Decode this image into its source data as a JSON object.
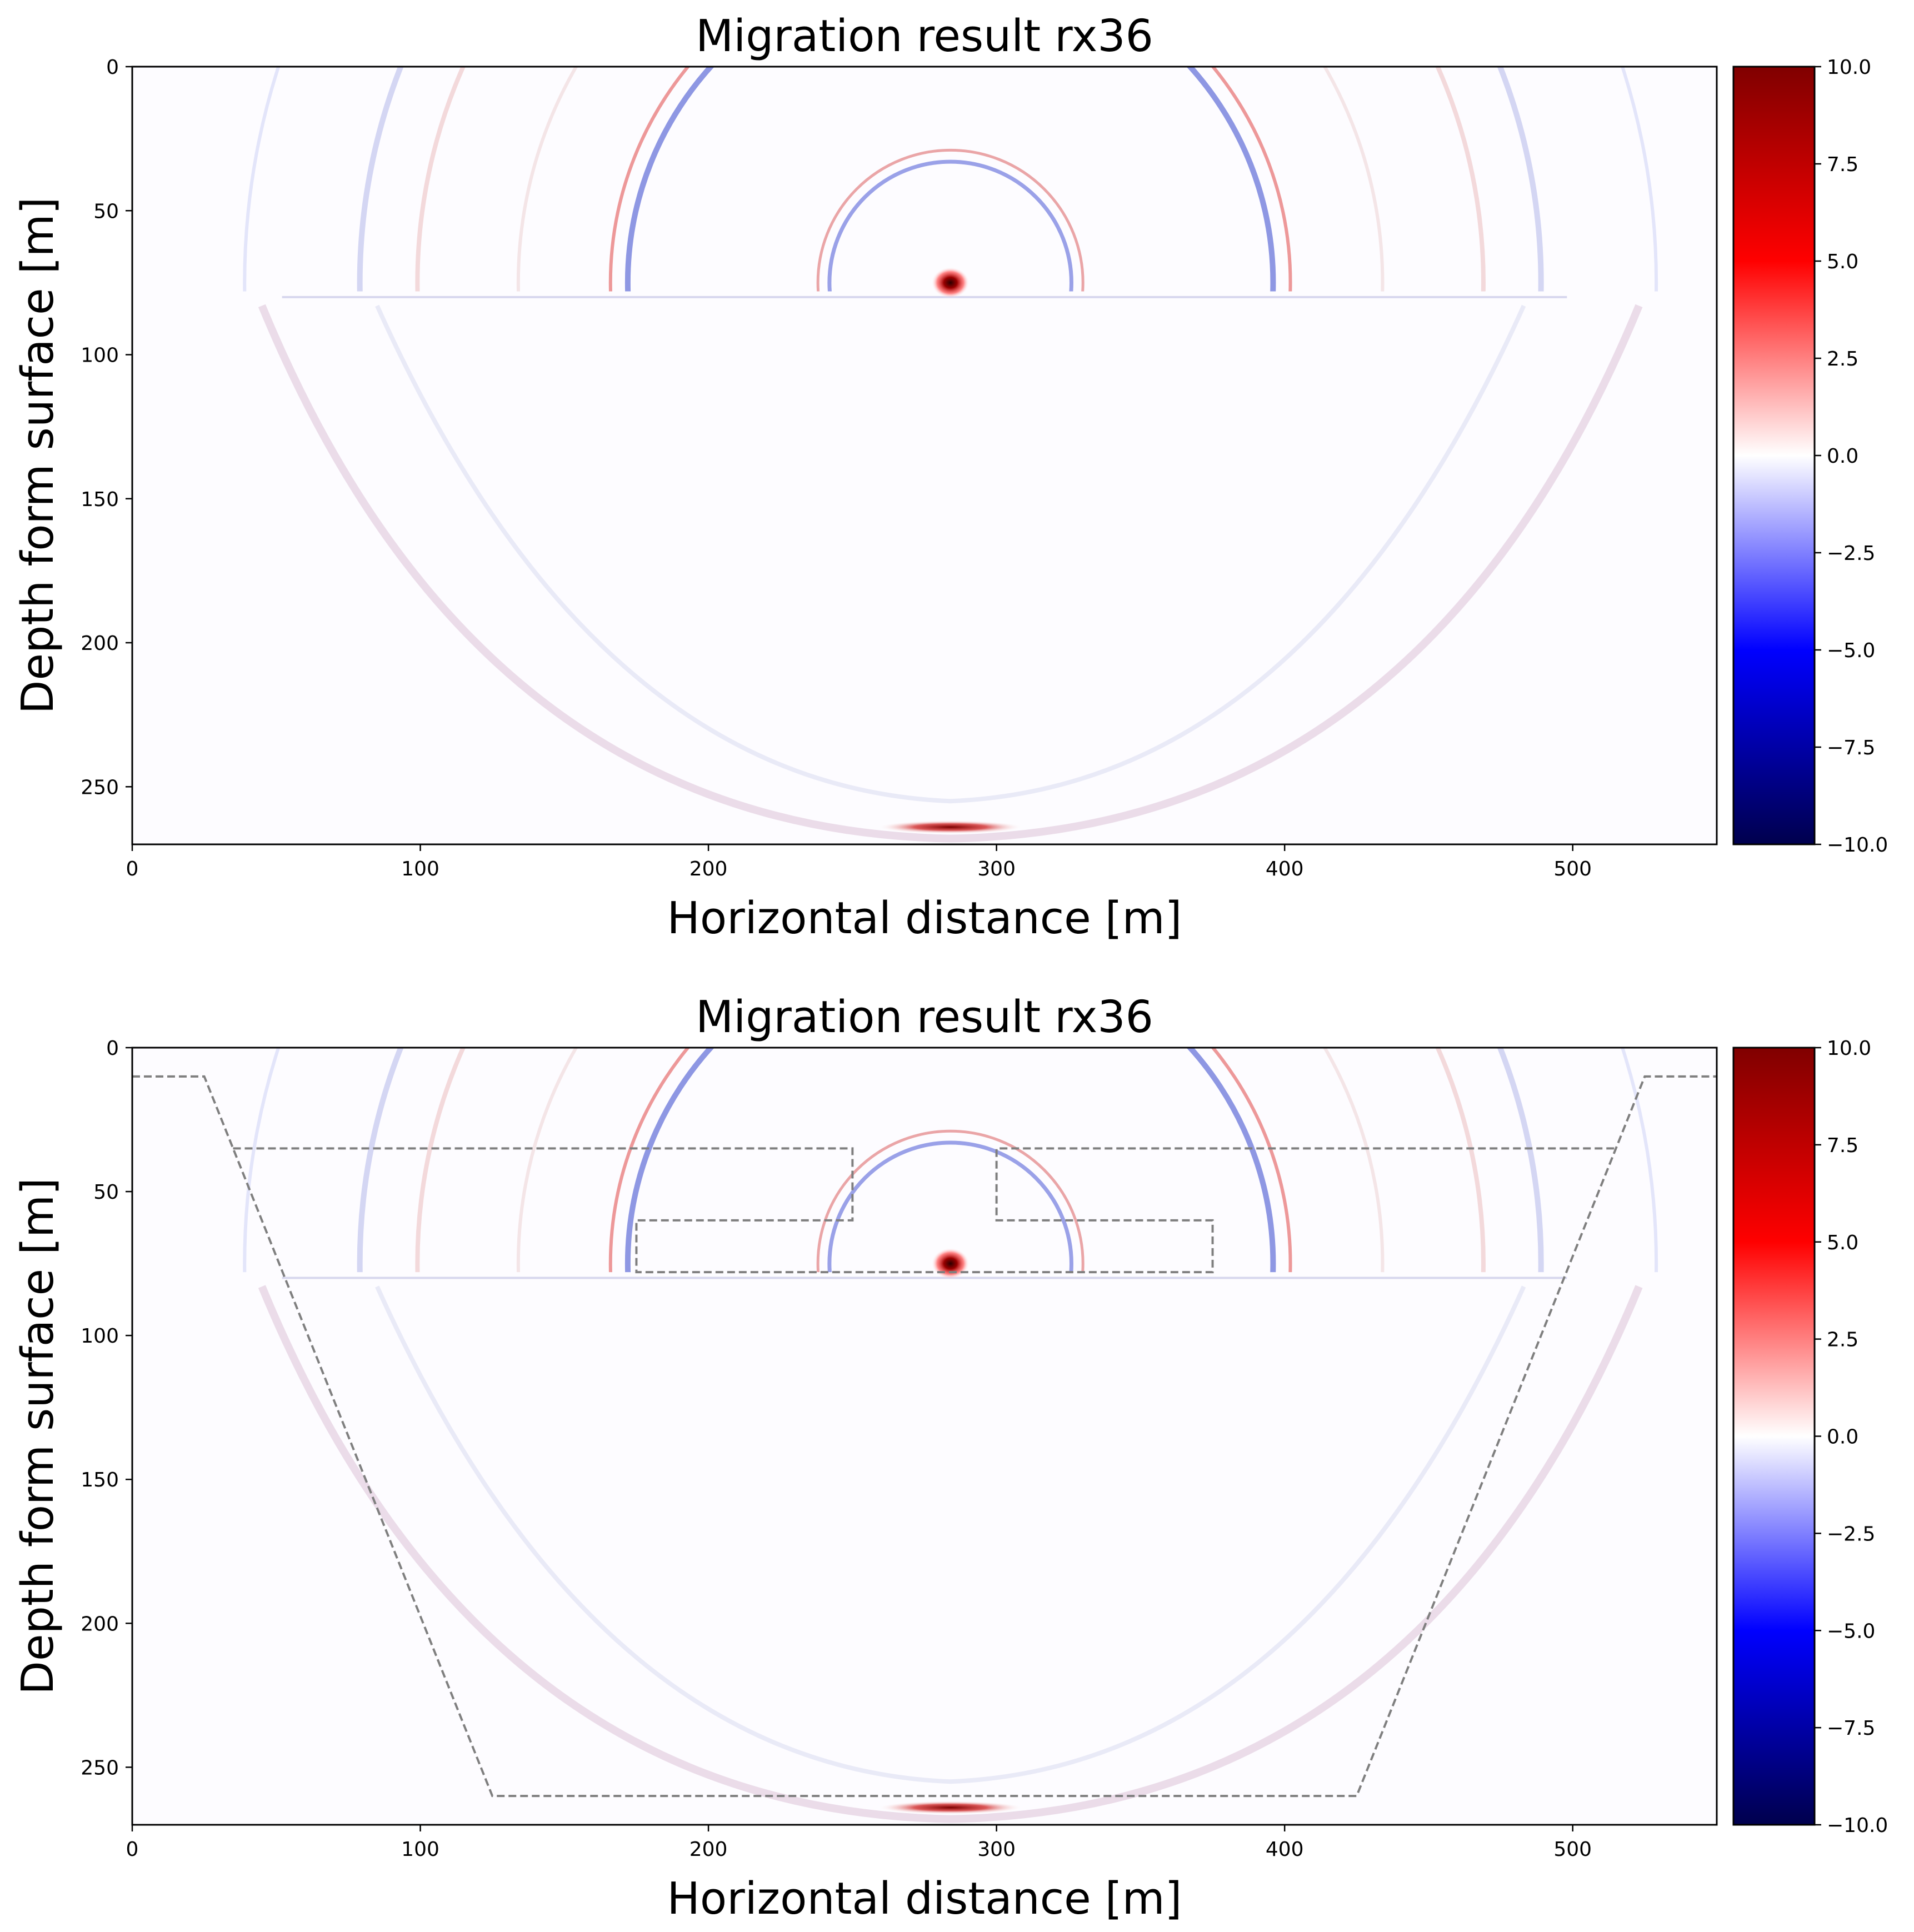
{
  "chart_data": [
    {
      "type": "heatmap",
      "title": "Migration result rx36",
      "xlabel": "Horizontal distance [m]",
      "ylabel": "Depth form surface [m]",
      "xlim": [
        0,
        550
      ],
      "ylim": [
        270,
        0
      ],
      "xticks": [
        0,
        100,
        200,
        300,
        400,
        500
      ],
      "yticks": [
        0,
        50,
        100,
        150,
        200,
        250
      ],
      "colorbar": {
        "cmap": "seismic",
        "vmin": -10.0,
        "vmax": 10.0,
        "ticks": [
          "10.0",
          "7.5",
          "5.0",
          "2.5",
          "0.0",
          "−2.5",
          "−5.0",
          "−7.5",
          "−10.0"
        ],
        "tick_values": [
          10,
          7.5,
          5,
          2.5,
          0,
          -2.5,
          -5,
          -7.5,
          -10
        ]
      },
      "reflector_interface_depth": 78,
      "strong_reflection": {
        "x": 284,
        "z": 75
      },
      "bottom_reflection": {
        "x": 284,
        "z": 264
      },
      "overlay": null
    },
    {
      "type": "heatmap",
      "title": "Migration result rx36",
      "xlabel": "Horizontal distance [m]",
      "ylabel": "Depth form surface [m]",
      "xlim": [
        0,
        550
      ],
      "ylim": [
        270,
        0
      ],
      "xticks": [
        0,
        100,
        200,
        300,
        400,
        500
      ],
      "yticks": [
        0,
        50,
        100,
        150,
        200,
        250
      ],
      "colorbar": {
        "cmap": "seismic",
        "vmin": -10.0,
        "vmax": 10.0,
        "ticks": [
          "10.0",
          "7.5",
          "5.0",
          "2.5",
          "0.0",
          "−2.5",
          "−5.0",
          "−7.5",
          "−10.0"
        ],
        "tick_values": [
          10,
          7.5,
          5,
          2.5,
          0,
          -2.5,
          -5,
          -7.5,
          -10
        ]
      },
      "reflector_interface_depth": 78,
      "strong_reflection": {
        "x": 284,
        "z": 75
      },
      "bottom_reflection": {
        "x": 284,
        "z": 264
      },
      "overlay": {
        "style": "dashed",
        "color": "#7f7f7f",
        "paths": [
          [
            [
              0,
              10
            ],
            [
              25,
              10
            ],
            [
              125,
              260
            ],
            [
              425,
              260
            ],
            [
              525,
              10
            ],
            [
              550,
              10
            ]
          ],
          [
            [
              35,
              35
            ],
            [
              250,
              35
            ],
            [
              250,
              60
            ],
            [
              175,
              60
            ],
            [
              175,
              78
            ],
            [
              375,
              78
            ],
            [
              375,
              60
            ],
            [
              300,
              60
            ],
            [
              300,
              35
            ],
            [
              515,
              35
            ]
          ]
        ]
      }
    }
  ]
}
